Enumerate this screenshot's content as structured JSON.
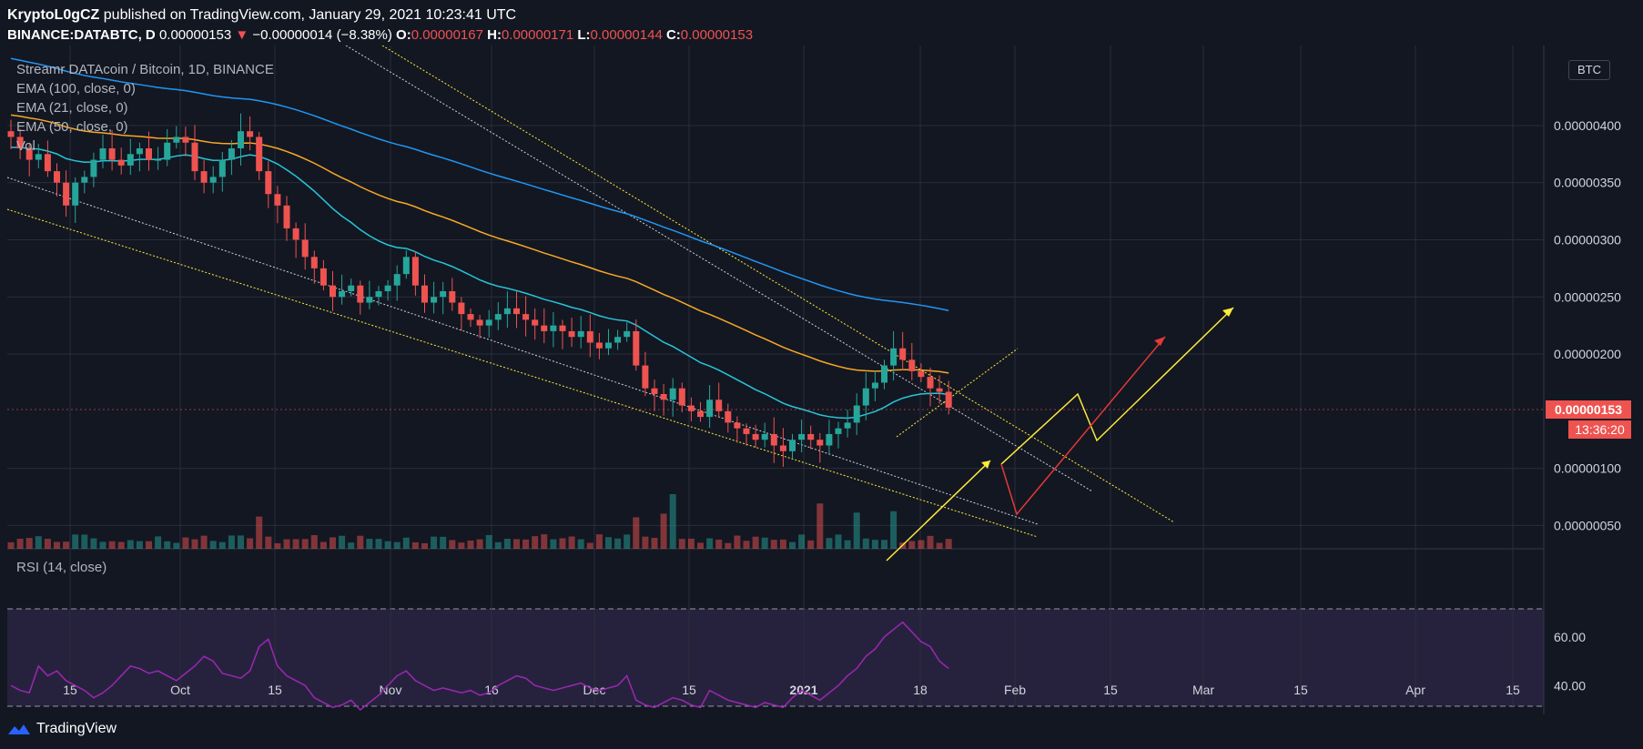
{
  "header": {
    "author": "KryptoL0gCZ",
    "published_text": "published on TradingView.com, January 29, 2021 10:23:41 UTC",
    "symbol": "BINANCE:DATABTC, D",
    "last": "0.00000153",
    "change": "−0.00000014 (−8.38%)",
    "o_label": "O:",
    "o": "0.00000167",
    "h_label": "H:",
    "h": "0.00000171",
    "l_label": "L:",
    "l": "0.00000144",
    "c_label": "C:",
    "c": "0.00000153"
  },
  "legend": {
    "title": "Streamr DATAcoin / Bitcoin, 1D, BINANCE",
    "ema100": "EMA (100, close, 0)",
    "ema21": "EMA (21, close, 0)",
    "ema50": "EMA (50, close, 0)",
    "vol": "Vol",
    "rsi": "RSI (14, close)"
  },
  "price_axis": {
    "currency": "BTC",
    "current_price": "0.00000153",
    "countdown": "13:36:20"
  },
  "colors": {
    "background": "#131722",
    "up": "#26a69a",
    "down": "#ef5350",
    "ema100": "#2196f3",
    "ema21": "#26c6da",
    "ema50": "#f9a825",
    "rsi": "#9c27b0",
    "annotation_yellow": "#ffeb3b",
    "annotation_red": "#e53935"
  },
  "footer": {
    "brand": "TradingView"
  },
  "chart_data": {
    "type": "candlestick",
    "symbol": "BINANCE:DATABTC",
    "timeframe": "1D",
    "x_tick_labels": [
      "15",
      "Oct",
      "15",
      "Nov",
      "16",
      "Dec",
      "15",
      "2021",
      "18",
      "Feb",
      "15",
      "Mar",
      "15",
      "Apr",
      "15"
    ],
    "y_tick_labels": [
      "0.00000400",
      "0.00000350",
      "0.00000300",
      "0.00000250",
      "0.00000200",
      "0.00000100",
      "0.00000050"
    ],
    "ylim": [
      5e-07,
      4.2e-06
    ],
    "rsi_tick_labels": [
      "60.00",
      "40.00"
    ],
    "rsi_bands": [
      70,
      30
    ],
    "close_series": [
      3.9,
      3.8,
      3.7,
      3.75,
      3.6,
      3.5,
      3.3,
      3.5,
      3.55,
      3.7,
      3.8,
      3.7,
      3.65,
      3.75,
      3.8,
      3.7,
      3.7,
      3.85,
      3.9,
      3.85,
      3.6,
      3.5,
      3.55,
      3.7,
      3.8,
      3.95,
      3.9,
      3.6,
      3.4,
      3.3,
      3.1,
      3.0,
      2.85,
      2.75,
      2.6,
      2.5,
      2.55,
      2.6,
      2.45,
      2.5,
      2.55,
      2.6,
      2.7,
      2.85,
      2.6,
      2.45,
      2.5,
      2.55,
      2.45,
      2.35,
      2.3,
      2.25,
      2.3,
      2.35,
      2.4,
      2.35,
      2.3,
      2.25,
      2.2,
      2.25,
      2.2,
      2.15,
      2.2,
      2.1,
      2.05,
      2.1,
      2.15,
      2.2,
      1.9,
      1.7,
      1.65,
      1.6,
      1.7,
      1.55,
      1.5,
      1.45,
      1.6,
      1.5,
      1.4,
      1.35,
      1.3,
      1.25,
      1.3,
      1.2,
      1.15,
      1.25,
      1.3,
      1.25,
      1.2,
      1.3,
      1.35,
      1.4,
      1.55,
      1.7,
      1.75,
      1.9,
      2.05,
      1.95,
      1.85,
      1.8,
      1.7,
      1.67,
      1.53
    ],
    "ema21_end": 1.62,
    "ema50_end": 1.72,
    "ema100_end": 2.14,
    "rsi_series": [
      40,
      38,
      37,
      48,
      44,
      46,
      42,
      40,
      38,
      35,
      37,
      40,
      44,
      48,
      47,
      45,
      46,
      44,
      42,
      45,
      48,
      52,
      50,
      45,
      44,
      43,
      46,
      56,
      59,
      48,
      44,
      42,
      40,
      35,
      33,
      31,
      32,
      34,
      30,
      33,
      36,
      40,
      44,
      46,
      42,
      40,
      38,
      39,
      38,
      37,
      38,
      36,
      37,
      40,
      42,
      44,
      43,
      40,
      39,
      38,
      39,
      40,
      41,
      39,
      38,
      39,
      40,
      44,
      34,
      32,
      31,
      33,
      35,
      34,
      32,
      31,
      38,
      36,
      34,
      33,
      32,
      31,
      33,
      32,
      31,
      35,
      38,
      36,
      34,
      37,
      40,
      44,
      47,
      52,
      55,
      60,
      63,
      66,
      62,
      58,
      56,
      50,
      47
    ]
  }
}
